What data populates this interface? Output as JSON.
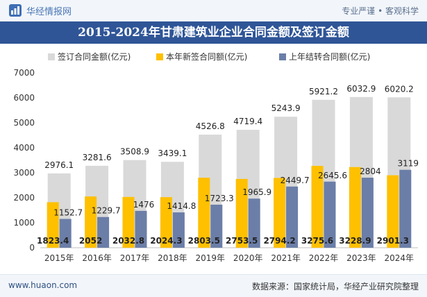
{
  "header": {
    "brand": "华经情报网",
    "tagline": "专业严谨 • 客观科学"
  },
  "colors": {
    "total": "#d9d9d9",
    "new": "#ffc000",
    "carried": "#6b7ea8",
    "title_bg": "#2f5597"
  },
  "chart_data": {
    "type": "bar",
    "title": "2015-2024年甘肃建筑业企业合同金额及签订金额",
    "xlabel": "",
    "ylabel": "",
    "ylim": [
      0,
      7000
    ],
    "yticks": [
      "0",
      "1000",
      "2000",
      "3000",
      "4000",
      "5000",
      "6000",
      "7000"
    ],
    "grid": false,
    "legend_position": "top",
    "categories": [
      "2015年",
      "2016年",
      "2017年",
      "2018年",
      "2019年",
      "2020年",
      "2021年",
      "2022年",
      "2023年",
      "2024年"
    ],
    "series": [
      {
        "name": "签订合同金额(亿元)",
        "values": [
          2976.1,
          3281.6,
          3508.9,
          3439.1,
          4526.8,
          4719.4,
          5243.9,
          5921.2,
          6032.9,
          6020.2
        ],
        "labels": [
          "2976.1",
          "3281.6",
          "3508.9",
          "3439.1",
          "4526.8",
          "4719.4",
          "5243.9",
          "5921.2",
          "6032.9",
          "6020.2"
        ]
      },
      {
        "name": "本年新签合同额(亿元)",
        "values": [
          1823.4,
          2052,
          2032.8,
          2024.3,
          2803.5,
          2753.5,
          2794.2,
          3275.6,
          3228.9,
          2901.3
        ],
        "labels": [
          "1823.4",
          "2052",
          "2032.8",
          "2024.3",
          "2803.5",
          "2753.5",
          "2794.2",
          "3275.6",
          "3228.9",
          "2901.3"
        ]
      },
      {
        "name": "上年结转合同额(亿元)",
        "values": [
          1152.7,
          1229.7,
          1476,
          1414.8,
          1723.3,
          1965.9,
          2449.7,
          2645.6,
          2804,
          3119
        ],
        "labels": [
          "1152.7",
          "1229.7",
          "1476",
          "1414.8",
          "1723.3",
          "1965.9",
          "2449.7",
          "2645.6",
          "2804",
          "3119"
        ]
      }
    ]
  },
  "footer": {
    "website": "www.huaon.com",
    "source": "数据来源：国家统计局，华经产业研究院整理"
  }
}
